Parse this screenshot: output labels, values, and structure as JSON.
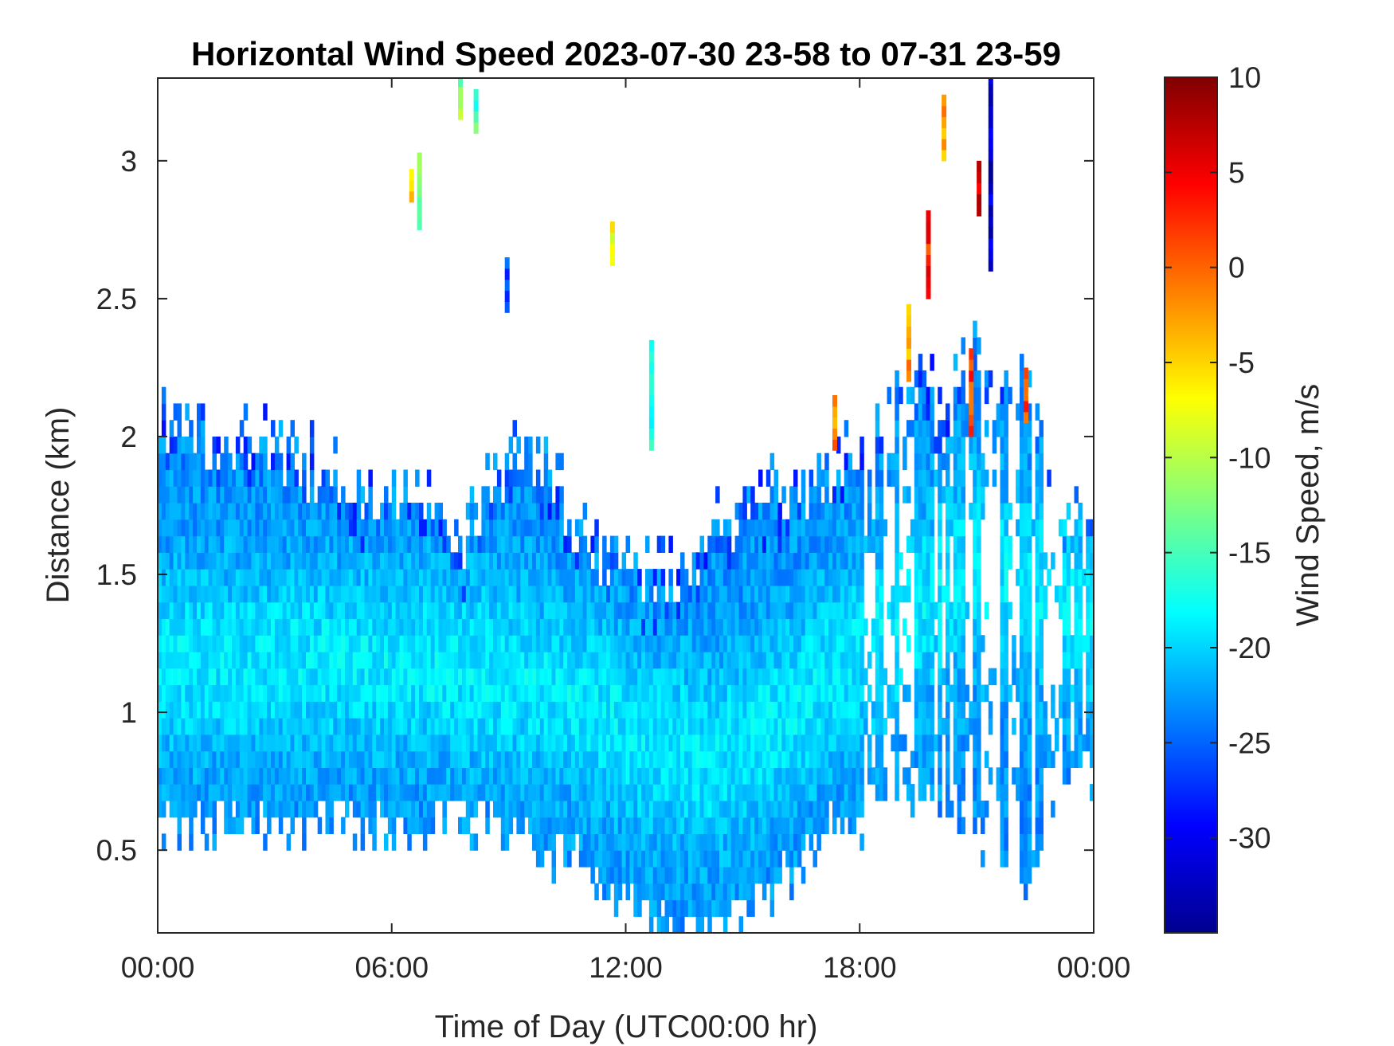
{
  "chart_data": {
    "type": "heatmap",
    "title": "Horizontal Wind Speed 2023-07-30 23-58 to 07-31 23-59",
    "xlabel": "Time of Day (UTC00:00 hr)",
    "ylabel": "Distance (km)",
    "colorbar_label": "Wind Speed, m/s",
    "colormap": "jet",
    "x_unit": "hours",
    "xlim": [
      0,
      24
    ],
    "ylim": [
      0.2,
      3.3
    ],
    "clim": [
      -35,
      10
    ],
    "xticks": [
      0,
      6,
      12,
      18,
      24
    ],
    "xtick_labels": [
      "00:00",
      "06:00",
      "12:00",
      "18:00",
      "00:00"
    ],
    "yticks": [
      0.5,
      1,
      1.5,
      2,
      2.5,
      3
    ],
    "ytick_labels": [
      "0.5",
      "1",
      "1.5",
      "2",
      "2.5",
      "3"
    ],
    "cticks": [
      10,
      5,
      0,
      -5,
      -10,
      -15,
      -20,
      -25,
      -30
    ],
    "ctick_labels": [
      "10",
      "5",
      "0",
      "-5",
      "-10",
      "-15",
      "-20",
      "-25",
      "-30"
    ],
    "grid": false,
    "layer_top": [
      [
        0,
        1.95
      ],
      [
        1,
        1.97
      ],
      [
        2,
        1.93
      ],
      [
        3,
        1.87
      ],
      [
        4,
        1.8
      ],
      [
        5,
        1.73
      ],
      [
        6,
        1.72
      ],
      [
        7,
        1.66
      ],
      [
        7.8,
        1.55
      ],
      [
        8.3,
        1.7
      ],
      [
        9,
        1.85
      ],
      [
        9.5,
        1.9
      ],
      [
        10.3,
        1.7
      ],
      [
        11,
        1.55
      ],
      [
        12,
        1.45
      ],
      [
        13,
        1.42
      ],
      [
        14,
        1.52
      ],
      [
        14.5,
        1.6
      ],
      [
        15,
        1.7
      ],
      [
        16,
        1.75
      ],
      [
        17,
        1.8
      ],
      [
        18,
        1.9
      ],
      [
        19,
        2.2
      ],
      [
        20,
        2.05
      ],
      [
        21,
        2.2
      ],
      [
        22,
        2.25
      ],
      [
        22.5,
        1.9
      ],
      [
        23,
        1.7
      ],
      [
        24,
        1.6
      ]
    ],
    "layer_bottom": [
      [
        0,
        0.62
      ],
      [
        1,
        0.6
      ],
      [
        2,
        0.58
      ],
      [
        3,
        0.6
      ],
      [
        4,
        0.62
      ],
      [
        5,
        0.62
      ],
      [
        6,
        0.6
      ],
      [
        7,
        0.6
      ],
      [
        8,
        0.62
      ],
      [
        9,
        0.58
      ],
      [
        10,
        0.52
      ],
      [
        11,
        0.45
      ],
      [
        12,
        0.3
      ],
      [
        13,
        0.22
      ],
      [
        14,
        0.22
      ],
      [
        15,
        0.3
      ],
      [
        16,
        0.4
      ],
      [
        17,
        0.55
      ],
      [
        18,
        0.65
      ],
      [
        19,
        0.7
      ],
      [
        20,
        0.72
      ],
      [
        21,
        0.55
      ],
      [
        22,
        0.3
      ],
      [
        23,
        0.7
      ],
      [
        24,
        0.85
      ]
    ],
    "core_center_km": [
      [
        0,
        1.15
      ],
      [
        6,
        1.15
      ],
      [
        9,
        1.1
      ],
      [
        11,
        1.0
      ],
      [
        12.5,
        0.85
      ],
      [
        14,
        0.8
      ],
      [
        16,
        0.95
      ],
      [
        18,
        1.2
      ],
      [
        21,
        1.5
      ],
      [
        24,
        1.3
      ]
    ],
    "typical_speed_ms": -23,
    "core_speed_ms": -19,
    "high_altitude_patches": [
      {
        "t": 6.65,
        "z0": 2.75,
        "z1": 3.0,
        "v": -14
      },
      {
        "t": 6.45,
        "z0": 2.85,
        "z1": 2.95,
        "v": -6
      },
      {
        "t": 7.7,
        "z0": 3.15,
        "z1": 3.3,
        "v": -12
      },
      {
        "t": 8.1,
        "z0": 3.1,
        "z1": 3.25,
        "v": -15
      },
      {
        "t": 8.9,
        "z0": 2.45,
        "z1": 2.62,
        "v": -26
      },
      {
        "t": 11.6,
        "z0": 2.62,
        "z1": 2.78,
        "v": -8
      },
      {
        "t": 12.6,
        "z0": 1.95,
        "z1": 2.35,
        "v": -18
      },
      {
        "t": 17.3,
        "z0": 1.95,
        "z1": 2.15,
        "v": -2
      },
      {
        "t": 19.2,
        "z0": 2.2,
        "z1": 2.48,
        "v": -3
      },
      {
        "t": 19.7,
        "z0": 2.5,
        "z1": 2.8,
        "v": 3
      },
      {
        "t": 20.8,
        "z0": 2.0,
        "z1": 2.3,
        "v": 2
      },
      {
        "t": 21.3,
        "z0": 2.6,
        "z1": 3.3,
        "v": -32
      },
      {
        "t": 21.0,
        "z0": 2.8,
        "z1": 3.0,
        "v": 7
      },
      {
        "t": 22.2,
        "z0": 2.05,
        "z1": 2.25,
        "v": 1
      },
      {
        "t": 20.1,
        "z0": 3.0,
        "z1": 3.22,
        "v": -3
      }
    ]
  }
}
